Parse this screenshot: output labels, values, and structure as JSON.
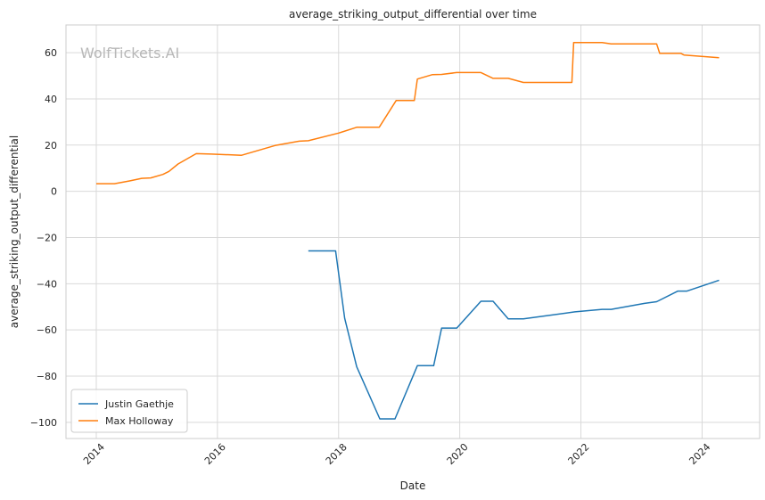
{
  "chart_data": {
    "type": "line",
    "title": "average_striking_output_differential over time",
    "xlabel": "Date",
    "ylabel": "average_striking_output_differential",
    "watermark": "WolfTickets.AI",
    "xlim": [
      2013.5,
      2024.95
    ],
    "ylim": [
      -107,
      72
    ],
    "xticks": [
      2014,
      2016,
      2018,
      2020,
      2022,
      2024
    ],
    "yticks": [
      -100,
      -80,
      -60,
      -40,
      -20,
      0,
      20,
      40,
      60
    ],
    "grid": true,
    "legend_position": "lower-left",
    "colors": {
      "Justin Gaethje": "#1f77b4",
      "Max Holloway": "#ff7f0e"
    },
    "series": [
      {
        "name": "Justin Gaethje",
        "color": "#1f77b4",
        "points": [
          [
            2017.5,
            -25.8
          ],
          [
            2017.95,
            -25.8
          ],
          [
            2018.1,
            -55
          ],
          [
            2018.3,
            -76
          ],
          [
            2018.68,
            -98.5
          ],
          [
            2018.93,
            -98.5
          ],
          [
            2019.3,
            -75.5
          ],
          [
            2019.57,
            -75.5
          ],
          [
            2019.7,
            -59.2
          ],
          [
            2019.95,
            -59.2
          ],
          [
            2020.35,
            -47.6
          ],
          [
            2020.55,
            -47.6
          ],
          [
            2020.8,
            -55.2
          ],
          [
            2021.05,
            -55.2
          ],
          [
            2021.9,
            -52.2
          ],
          [
            2022.35,
            -51.1
          ],
          [
            2022.5,
            -51.1
          ],
          [
            2023.05,
            -48.5
          ],
          [
            2023.25,
            -47.8
          ],
          [
            2023.6,
            -43.2
          ],
          [
            2023.75,
            -43.2
          ],
          [
            2024.28,
            -38.5
          ]
        ]
      },
      {
        "name": "Max Holloway",
        "color": "#ff7f0e",
        "points": [
          [
            2014.0,
            3.3
          ],
          [
            2014.3,
            3.3
          ],
          [
            2014.55,
            4.5
          ],
          [
            2014.75,
            5.6
          ],
          [
            2014.9,
            5.8
          ],
          [
            2015.1,
            7.3
          ],
          [
            2015.2,
            8.6
          ],
          [
            2015.35,
            11.8
          ],
          [
            2015.65,
            16.3
          ],
          [
            2015.9,
            16.1
          ],
          [
            2016.4,
            15.6
          ],
          [
            2016.95,
            19.8
          ],
          [
            2017.35,
            21.7
          ],
          [
            2017.5,
            21.9
          ],
          [
            2018.0,
            25.2
          ],
          [
            2018.3,
            27.7
          ],
          [
            2018.67,
            27.7
          ],
          [
            2018.95,
            39.3
          ],
          [
            2019.25,
            39.3
          ],
          [
            2019.3,
            48.6
          ],
          [
            2019.55,
            50.5
          ],
          [
            2019.7,
            50.6
          ],
          [
            2019.95,
            51.4
          ],
          [
            2020.35,
            51.4
          ],
          [
            2020.55,
            48.9
          ],
          [
            2020.8,
            48.9
          ],
          [
            2021.05,
            47.1
          ],
          [
            2021.85,
            47.1
          ],
          [
            2021.88,
            64.4
          ],
          [
            2022.35,
            64.4
          ],
          [
            2022.5,
            63.8
          ],
          [
            2023.25,
            63.8
          ],
          [
            2023.3,
            59.7
          ],
          [
            2023.65,
            59.7
          ],
          [
            2023.7,
            59.0
          ],
          [
            2024.28,
            57.8
          ]
        ]
      }
    ]
  }
}
